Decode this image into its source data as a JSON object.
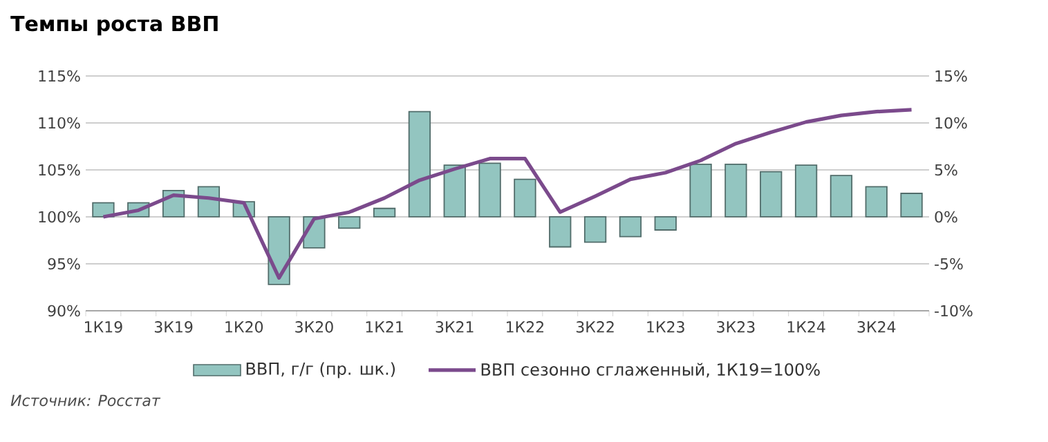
{
  "chart_data": {
    "type": "bar",
    "title": "Темпы роста ВВП",
    "categories": [
      "1К19",
      null,
      "3К19",
      null,
      "1К20",
      null,
      "3К20",
      null,
      "1К21",
      null,
      "3К21",
      null,
      "1К22",
      null,
      "3К22",
      null,
      "1К23",
      null,
      "3К23",
      null,
      "1К24",
      null,
      "3К24",
      null
    ],
    "series": [
      {
        "name": "ВВП, г/г (пр. шк.)",
        "color": "#93c5c0",
        "base": [
          100,
          100,
          100,
          100,
          100,
          100,
          100,
          100,
          100,
          100,
          100,
          100,
          100,
          100,
          100,
          100,
          100,
          100,
          100,
          100,
          100,
          100,
          100,
          100
        ],
        "values": [
          1.5,
          1.5,
          2.8,
          3.2,
          1.6,
          -7.2,
          -3.3,
          -1.2,
          0.9,
          11.2,
          5.5,
          5.7,
          4.0,
          -3.2,
          -2.7,
          -2.1,
          -1.4,
          5.6,
          5.6,
          4.8,
          5.5,
          4.4,
          3.2,
          2.5
        ]
      },
      {
        "name": "ВВП сезонно сглаженный, 1К19=100%",
        "type": "line",
        "axis": "y2",
        "color": "#7b4a8c",
        "values": [
          0,
          0.7,
          2.3,
          2.0,
          1.5,
          -6.5,
          -0.2,
          0.5,
          2.0,
          3.9,
          5.1,
          6.2,
          6.2,
          0.5,
          2.2,
          4.0,
          4.7,
          6.0,
          7.8,
          9.0,
          10.1,
          10.8,
          11.2,
          11.4
        ]
      }
    ],
    "ylim": [
      90,
      115
    ],
    "yticks": [
      {
        "value": 90,
        "label": "90%"
      },
      {
        "value": 95,
        "label": "95%"
      },
      {
        "value": 100,
        "label": "100%"
      },
      {
        "value": 105,
        "label": "105%"
      },
      {
        "value": 110,
        "label": "110%"
      },
      {
        "value": 115,
        "label": "115%"
      }
    ],
    "y2lim": [
      -10,
      15
    ],
    "y2ticks": [
      {
        "value": -10,
        "label": "-10%"
      },
      {
        "value": -5,
        "label": "-5%"
      },
      {
        "value": 0,
        "label": "0%"
      },
      {
        "value": 5,
        "label": "5%"
      },
      {
        "value": 10,
        "label": "10%"
      },
      {
        "value": 15,
        "label": "15%"
      }
    ],
    "grid": "y",
    "legend": "bottom",
    "marker": "none",
    "line_style": "solid",
    "annotations": [
      "Источник: Росстат"
    ]
  }
}
